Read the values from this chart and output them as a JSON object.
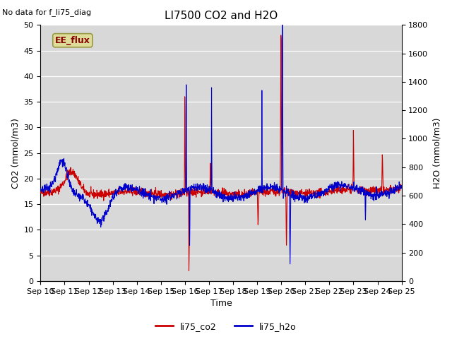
{
  "title": "LI7500 CO2 and H2O",
  "top_left_text": "No data for f_li75_diag",
  "xlabel": "Time",
  "ylabel_left": "CO2 (mmol/m3)",
  "ylabel_right": "H2O (mmol/m3)",
  "ylim_left": [
    0,
    50
  ],
  "ylim_right": [
    0,
    1800
  ],
  "xtick_labels": [
    "Sep 10",
    "Sep 11",
    "Sep 12",
    "Sep 13",
    "Sep 14",
    "Sep 15",
    "Sep 16",
    "Sep 17",
    "Sep 18",
    "Sep 19",
    "Sep 20",
    "Sep 21",
    "Sep 22",
    "Sep 23",
    "Sep 24",
    "Sep 25"
  ],
  "yticks_left": [
    0,
    5,
    10,
    15,
    20,
    25,
    30,
    35,
    40,
    45,
    50
  ],
  "yticks_right": [
    0,
    200,
    400,
    600,
    800,
    1000,
    1200,
    1400,
    1600,
    1800
  ],
  "co2_color": "#cc0000",
  "h2o_color": "#0000cc",
  "plot_bg": "#d8d8d8",
  "fig_bg": "#ffffff",
  "grid_color": "#c0c0c0",
  "ee_flux_label": "EE_flux",
  "ee_flux_fg": "#880000",
  "ee_flux_bg": "#dddd99",
  "ee_flux_border": "#999944",
  "legend_co2": "li75_co2",
  "legend_h2o": "li75_h2o",
  "linewidth": 0.8,
  "title_fontsize": 11,
  "axis_fontsize": 9,
  "tick_fontsize": 8
}
